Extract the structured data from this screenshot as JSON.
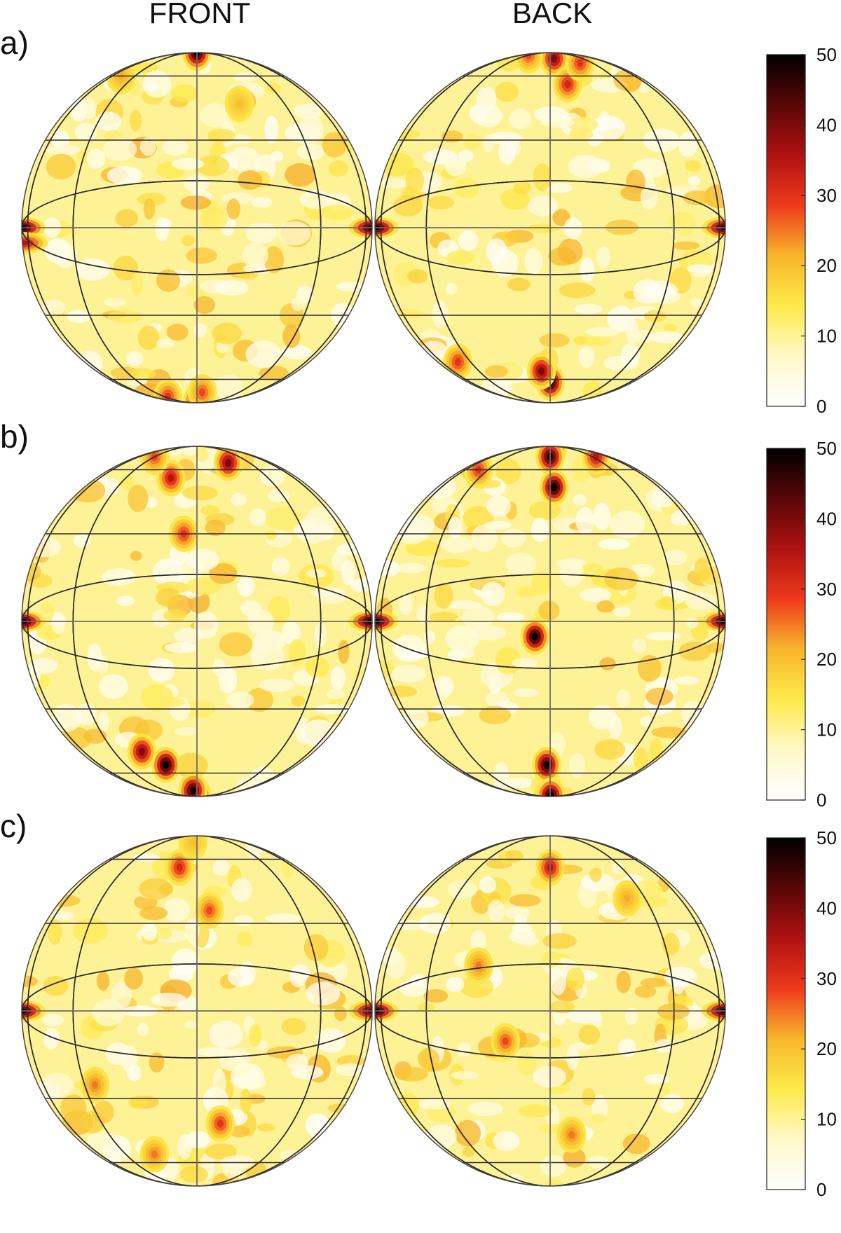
{
  "figure": {
    "column_labels": [
      "FRONT",
      "BACK"
    ],
    "panel_labels": [
      "a)",
      "b)",
      "c)"
    ]
  },
  "colors": {
    "scale": [
      "#ffffff",
      "#fff8c8",
      "#fdea4a",
      "#f7b52b",
      "#ee3a1c",
      "#b01212",
      "#5a0707",
      "#000000"
    ],
    "grid": "#2a2a33",
    "equator": "#6b6b6b"
  },
  "chart_data": {
    "type": "heatmap",
    "projection": "hemispherical (equal-area) maps",
    "columns": [
      "FRONT",
      "BACK"
    ],
    "colorbar": {
      "min": 0,
      "max": 50,
      "ticks": [
        0,
        10,
        20,
        30,
        40,
        50
      ]
    },
    "panels": [
      {
        "label": "a)",
        "maps": [
          {
            "column": "FRONT",
            "hotspots": [
              {
                "lat": 0,
                "lon": -90,
                "value": 50
              },
              {
                "lat": 0,
                "lon": 90,
                "value": 48
              },
              {
                "lat": 88,
                "lon": 0,
                "value": 50
              },
              {
                "lat": -85,
                "lon": 2,
                "value": 45
              },
              {
                "lat": -75,
                "lon": -40,
                "value": 30
              },
              {
                "lat": -70,
                "lon": 5,
                "value": 28
              },
              {
                "lat": -5,
                "lon": -82,
                "value": 35
              },
              {
                "lat": 60,
                "lon": -60,
                "value": 22
              },
              {
                "lat": 45,
                "lon": 20,
                "value": 20
              }
            ]
          },
          {
            "column": "BACK",
            "hotspots": [
              {
                "lat": 0,
                "lon": -90,
                "value": 50
              },
              {
                "lat": 0,
                "lon": 90,
                "value": 48
              },
              {
                "lat": -62,
                "lon": 0,
                "value": 50
              },
              {
                "lat": -55,
                "lon": -5,
                "value": 40
              },
              {
                "lat": 75,
                "lon": 5,
                "value": 40
              },
              {
                "lat": 55,
                "lon": 10,
                "value": 32
              },
              {
                "lat": 80,
                "lon": -45,
                "value": 28
              },
              {
                "lat": 70,
                "lon": 30,
                "value": 30
              },
              {
                "lat": -50,
                "lon": -55,
                "value": 30
              }
            ]
          }
        ]
      },
      {
        "label": "b)",
        "maps": [
          {
            "column": "FRONT",
            "hotspots": [
              {
                "lat": 0,
                "lon": -90,
                "value": 50
              },
              {
                "lat": 0,
                "lon": 90,
                "value": 50
              },
              {
                "lat": -85,
                "lon": 0,
                "value": 50
              },
              {
                "lat": -75,
                "lon": -5,
                "value": 48
              },
              {
                "lat": -55,
                "lon": -18,
                "value": 50
              },
              {
                "lat": -48,
                "lon": -28,
                "value": 40
              },
              {
                "lat": 65,
                "lon": 25,
                "value": 40
              },
              {
                "lat": 55,
                "lon": -15,
                "value": 35
              },
              {
                "lat": 30,
                "lon": -5,
                "value": 30
              },
              {
                "lat": 70,
                "lon": -45,
                "value": 28
              }
            ]
          },
          {
            "column": "BACK",
            "hotspots": [
              {
                "lat": 0,
                "lon": -90,
                "value": 50
              },
              {
                "lat": 0,
                "lon": 90,
                "value": 50
              },
              {
                "lat": 85,
                "lon": 10,
                "value": 50
              },
              {
                "lat": 70,
                "lon": 0,
                "value": 48
              },
              {
                "lat": 50,
                "lon": 2,
                "value": 50
              },
              {
                "lat": -5,
                "lon": -5,
                "value": 50
              },
              {
                "lat": -55,
                "lon": -2,
                "value": 48
              },
              {
                "lat": -85,
                "lon": 2,
                "value": 50
              },
              {
                "lat": 60,
                "lon": -55,
                "value": 30
              },
              {
                "lat": 70,
                "lon": 50,
                "value": 35
              }
            ]
          }
        ]
      },
      {
        "label": "c)",
        "maps": [
          {
            "column": "FRONT",
            "hotspots": [
              {
                "lat": 0,
                "lon": -90,
                "value": 50
              },
              {
                "lat": 0,
                "lon": 90,
                "value": 45
              },
              {
                "lat": 55,
                "lon": -10,
                "value": 32
              },
              {
                "lat": 35,
                "lon": 5,
                "value": 28
              },
              {
                "lat": -40,
                "lon": 10,
                "value": 30
              },
              {
                "lat": -25,
                "lon": -40,
                "value": 25
              },
              {
                "lat": -55,
                "lon": -25,
                "value": 25
              },
              {
                "lat": 75,
                "lon": -5,
                "value": 20
              }
            ]
          },
          {
            "column": "BACK",
            "hotspots": [
              {
                "lat": 0,
                "lon": -90,
                "value": 50
              },
              {
                "lat": 0,
                "lon": 90,
                "value": 50
              },
              {
                "lat": 55,
                "lon": 0,
                "value": 35
              },
              {
                "lat": 15,
                "lon": -25,
                "value": 25
              },
              {
                "lat": -10,
                "lon": -15,
                "value": 28
              },
              {
                "lat": -45,
                "lon": 10,
                "value": 25
              },
              {
                "lat": 40,
                "lon": 35,
                "value": 22
              }
            ]
          }
        ]
      }
    ]
  }
}
